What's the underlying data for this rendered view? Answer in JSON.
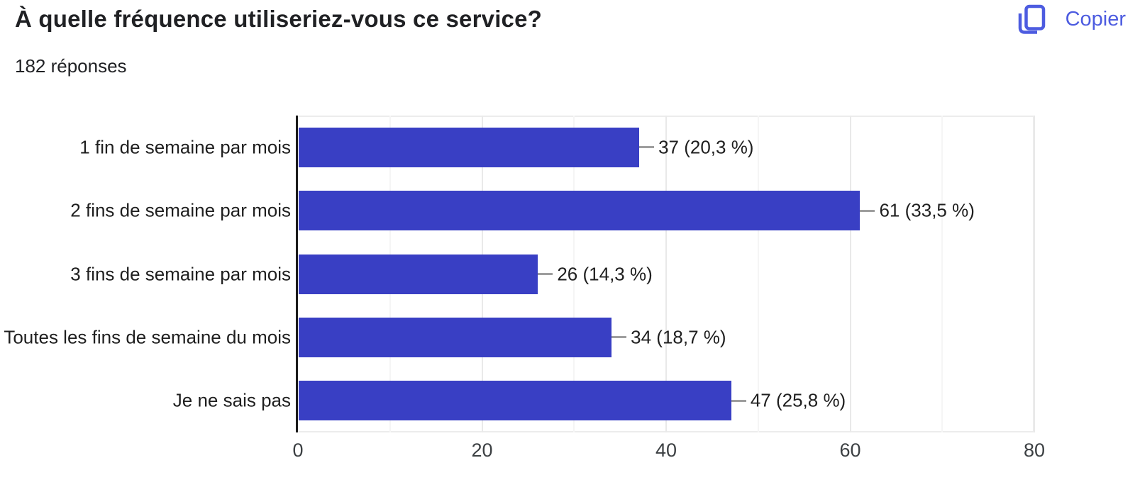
{
  "header": {
    "title": "À quelle fréquence utiliseriez-vous ce service?",
    "responses_count": "182 réponses",
    "copy_label": "Copier"
  },
  "chart_data": {
    "type": "bar",
    "orientation": "horizontal",
    "title": "À quelle fréquence utiliseriez-vous ce service?",
    "categories": [
      "1 fin de semaine par mois",
      "2 fins de semaine par mois",
      "3 fins de semaine par mois",
      "Toutes les fins de semaine du mois",
      "Je ne sais pas"
    ],
    "values": [
      37,
      61,
      26,
      34,
      47
    ],
    "value_labels": [
      "37 (20,3 %)",
      "61 (33,5 %)",
      "26 (14,3 %)",
      "34 (18,7 %)",
      "47 (25,8 %)"
    ],
    "xlim": [
      0,
      80
    ],
    "x_ticks": [
      0,
      20,
      40,
      60,
      80
    ],
    "grid": true,
    "legend": "none",
    "xlabel": "",
    "ylabel": ""
  },
  "colors": {
    "bar": "#393fc4",
    "accent": "#4d5ce0",
    "text": "#202124",
    "connector": "#9e9e9e",
    "axis": "#1b1b1b",
    "grid_major": "#e9e9e9",
    "grid_minor": "#f5f5f5"
  }
}
